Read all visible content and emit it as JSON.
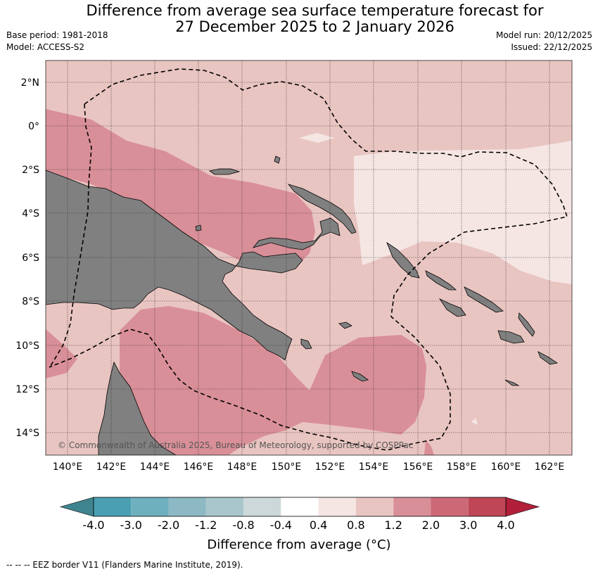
{
  "title_line1": "Difference from average sea surface temperature forecast for",
  "title_line2": "27 December 2025 to 2 January 2026",
  "base_period": "Base period: 1981-2018",
  "model": "Model: ACCESS-S2",
  "model_run": "Model run: 20/12/2025",
  "issued": "Issued: 22/12/2025",
  "copyright": "© Commonwealth of Australia 2025, Bureau of Meteorology, supported by COSPPac",
  "lat_labels": [
    "2°N",
    "0°",
    "2°S",
    "4°S",
    "6°S",
    "8°S",
    "10°S",
    "12°S",
    "14°S"
  ],
  "lon_labels": [
    "140°E",
    "142°E",
    "144°E",
    "146°E",
    "148°E",
    "150°E",
    "152°E",
    "154°E",
    "156°E",
    "158°E",
    "160°E",
    "162°E"
  ],
  "colorbar": {
    "title": "Difference from average (°C)",
    "ticks": [
      "-4.0",
      "-3.0",
      "-2.0",
      "-1.2",
      "-0.8",
      "-0.4",
      "0.4",
      "0.8",
      "1.2",
      "2.0",
      "3.0",
      "4.0"
    ],
    "colors": [
      "#4aa0b2",
      "#6fb0bf",
      "#8db9c4",
      "#a8c6cb",
      "#ccd8da",
      "#ffffff",
      "#f5e6e4",
      "#e9c5c1",
      "#d98f98",
      "#cd6977",
      "#bf4656"
    ],
    "under_color": "#3f858f",
    "over_color": "#b21f3b"
  },
  "footer": "-- -- -- EEZ border V11 (Flanders Marine Institute, 2019).",
  "colors": {
    "land": "#808080",
    "ocean_base": "#e9c5c1",
    "warm": "#d98f98",
    "near_normal": "#f5e6e4"
  }
}
